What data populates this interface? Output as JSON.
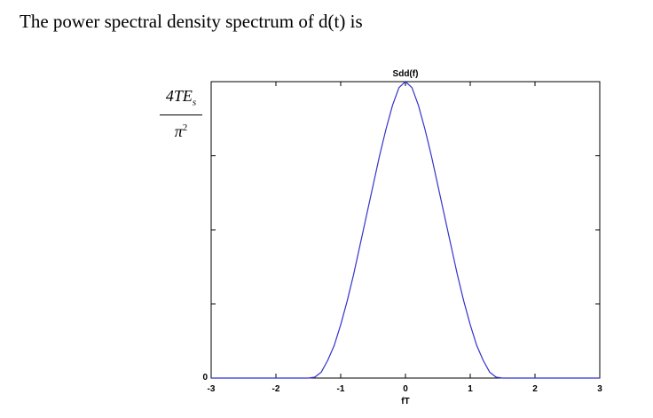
{
  "heading": "The power spectral density spectrum of d(t) is",
  "ylabel": {
    "numerator": "4TE",
    "numerator_sub": "s",
    "denominator": "π",
    "denominator_sup": "2"
  },
  "chart_data": {
    "type": "line",
    "title": "Sdd(f)",
    "xlabel": "fT",
    "xlim": [
      -3,
      3
    ],
    "ylim": [
      0,
      1
    ],
    "xticks": [
      -3,
      -2,
      -1,
      0,
      1,
      2,
      3
    ],
    "yticks": [
      0
    ],
    "line_color": "#3333cc",
    "series": [
      {
        "x": [
          -3,
          -2.5,
          -2,
          -1.5,
          -1.4,
          -1.3,
          -1.2,
          -1.1,
          -1.0,
          -0.9,
          -0.8,
          -0.7,
          -0.6,
          -0.5,
          -0.4,
          -0.3,
          -0.2,
          -0.1,
          0,
          0.1,
          0.2,
          0.3,
          0.4,
          0.5,
          0.6,
          0.7,
          0.8,
          0.9,
          1.0,
          1.1,
          1.2,
          1.3,
          1.4,
          1.5,
          2,
          2.5,
          3
        ],
        "y": [
          0,
          0,
          0,
          0,
          0.003,
          0.02,
          0.06,
          0.11,
          0.18,
          0.26,
          0.35,
          0.45,
          0.55,
          0.65,
          0.75,
          0.84,
          0.92,
          0.98,
          1.0,
          0.98,
          0.92,
          0.84,
          0.75,
          0.65,
          0.55,
          0.45,
          0.35,
          0.26,
          0.18,
          0.11,
          0.06,
          0.02,
          0.003,
          0,
          0,
          0,
          0
        ]
      }
    ]
  }
}
